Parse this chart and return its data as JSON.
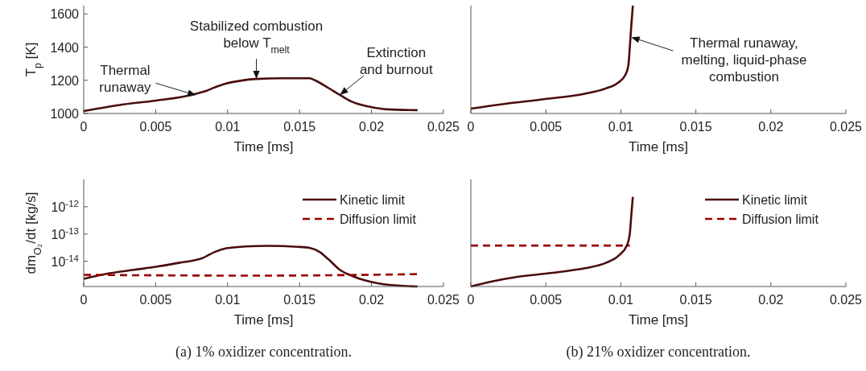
{
  "chart_data": [
    {
      "type": "line",
      "ylabel": "T$_{p}$ [K]",
      "xlabel": "Time [ms]",
      "xlim": [
        0,
        0.025
      ],
      "xticks": [
        0,
        0.005,
        0.01,
        0.015,
        0.02,
        0.025
      ],
      "ylim": [
        1000,
        1650
      ],
      "yticks": [
        1000,
        1200,
        1400,
        1600
      ],
      "x": [
        0,
        0.0025,
        0.005,
        0.0075,
        0.0085,
        0.0091,
        0.0099,
        0.0108,
        0.012,
        0.0137,
        0.0157,
        0.0161,
        0.017,
        0.0178,
        0.0186,
        0.0199,
        0.0211,
        0.0232
      ],
      "series": [
        {
          "color": "#4a0c0c",
          "values": [
            1015,
            1051,
            1078,
            1112,
            1136,
            1157,
            1181,
            1196,
            1208,
            1212,
            1212,
            1199,
            1154,
            1112,
            1072,
            1040,
            1025,
            1020
          ]
        }
      ],
      "annotations": [
        {
          "text": "Thermal\nrunaway",
          "x": 0.0078,
          "y": 1110
        },
        {
          "text": "Stabilized combustion\nbelow T$_{melt}$",
          "x": 0.012,
          "y": 1208
        },
        {
          "text": "Extinction\nand burnout",
          "x": 0.0178,
          "y": 1112
        }
      ]
    },
    {
      "type": "line",
      "xlabel": "Time [ms]",
      "xlim": [
        0,
        0.025
      ],
      "xticks": [
        0,
        0.005,
        0.01,
        0.015,
        0.02,
        0.025
      ],
      "ylim": [
        1000,
        1650
      ],
      "tick_labels": "x",
      "x": [
        0,
        0.0022,
        0.0049,
        0.0076,
        0.009,
        0.0098,
        0.0103,
        0.0105,
        0.0106,
        0.0107,
        0.0108
      ],
      "series": [
        {
          "color": "#4a0c0c",
          "values": [
            1029,
            1057,
            1086,
            1119,
            1151,
            1184,
            1233,
            1289,
            1403,
            1533,
            1650
          ]
        }
      ],
      "annotations": [
        {
          "text": "Thermal runaway,\nmelting, liquid-phase\ncombustion",
          "x": 0.0107,
          "y": 1460
        }
      ]
    },
    {
      "type": "line",
      "ylabel": "dm$_{O₂}$/dt [kg/s]",
      "xlabel": "Time [ms]",
      "xlim": [
        0,
        0.025
      ],
      "xticks": [
        0,
        0.005,
        0.01,
        0.015,
        0.02,
        0.025
      ],
      "log": true,
      "ylim": [
        1.2e-15,
        1e-11
      ],
      "yticks": [
        {
          "value": 1e-14,
          "label": "10$^{-14}$"
        },
        {
          "value": 1e-13,
          "label": "10$^{-13}$"
        },
        {
          "value": 1e-12,
          "label": "10$^{-12}$"
        }
      ],
      "legend": "top right",
      "series": [
        {
          "name": "Kinetic limit",
          "color": "#4a0c0c",
          "line_style": "solid",
          "x": [
            0,
            0.00145,
            0.0035,
            0.005,
            0.0066,
            0.0083,
            0.0091,
            0.0099,
            0.0112,
            0.0128,
            0.0149,
            0.0157,
            0.0164,
            0.017,
            0.0178,
            0.0186,
            0.0199,
            0.0211,
            0.0232
          ],
          "values": [
            2.3e-15,
            3.4e-15,
            4.9e-15,
            6.3e-15,
            8.8e-15,
            1.35e-14,
            2.2e-14,
            3e-14,
            3.5e-14,
            3.7e-14,
            3.4e-14,
            3.1e-14,
            2.2e-14,
            1.2e-14,
            4.9e-15,
            3e-15,
            1.8e-15,
            1.4e-15,
            1.2e-15
          ]
        },
        {
          "name": "Diffusion limit",
          "color": "#990000",
          "line_style": "dashed",
          "x": [
            0,
            0.012,
            0.0232
          ],
          "values": [
            3.2e-15,
            3e-15,
            3.4e-15
          ]
        }
      ],
      "annotations": [
        "(a) 1% oxidizer concentration."
      ]
    },
    {
      "type": "line",
      "xlabel": "Time [ms]",
      "xlim": [
        0,
        0.025
      ],
      "xticks": [
        0,
        0.005,
        0.01,
        0.015,
        0.02,
        0.025
      ],
      "log": true,
      "ylim": [
        1.2e-15,
        1e-11
      ],
      "tick_labels": "x",
      "legend": "top right",
      "series": [
        {
          "name": "Kinetic limit",
          "color": "#4a0c0c",
          "line_style": "solid",
          "x": [
            0,
            0.00134,
            0.0031,
            0.0058,
            0.0076,
            0.009,
            0.0099,
            0.0104,
            0.0106,
            0.0107,
            0.0108
          ],
          "values": [
            1.2e-15,
            1.8e-15,
            2.7e-15,
            4e-15,
            5.6e-15,
            8.8e-15,
            1.7e-14,
            3.8e-14,
            1.07e-13,
            5.1e-13,
            2.3e-12
          ]
        },
        {
          "name": "Diffusion limit",
          "color": "#990000",
          "line_style": "dashed",
          "x": [
            0,
            0.0106
          ],
          "values": [
            3.8e-14,
            3.8e-14
          ]
        }
      ],
      "annotations": [
        "(b) 21% oxidizer concentration."
      ]
    }
  ]
}
